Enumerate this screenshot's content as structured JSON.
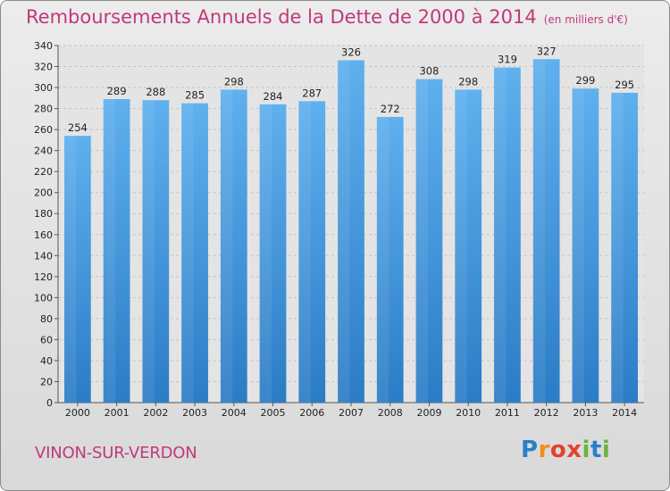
{
  "chart_data": {
    "type": "bar",
    "title": "Remboursements Annuels de la Dette de 2000 à 2014",
    "subtitle": "(en milliers d'€)",
    "categories": [
      "2000",
      "2001",
      "2002",
      "2003",
      "2004",
      "2005",
      "2006",
      "2007",
      "2008",
      "2009",
      "2010",
      "2011",
      "2012",
      "2013",
      "2014"
    ],
    "values": [
      254,
      289,
      288,
      285,
      298,
      284,
      287,
      326,
      272,
      308,
      298,
      319,
      327,
      299,
      295
    ],
    "ylim": [
      0,
      340
    ],
    "ytick_step": 20,
    "xlabel": "",
    "ylabel": "",
    "grid": true,
    "bar_color": "#3a8fd6"
  },
  "footer": {
    "town": "VINON-SUR-VERDON"
  },
  "logo": {
    "letters": [
      "P",
      "r",
      "o",
      "x",
      "i",
      "t",
      "i"
    ],
    "colors": [
      "#2a7fc9",
      "#f28c1a",
      "#e63f2e",
      "#e63f2e",
      "#6cb33f",
      "#2a7fc9",
      "#6cb33f"
    ]
  }
}
